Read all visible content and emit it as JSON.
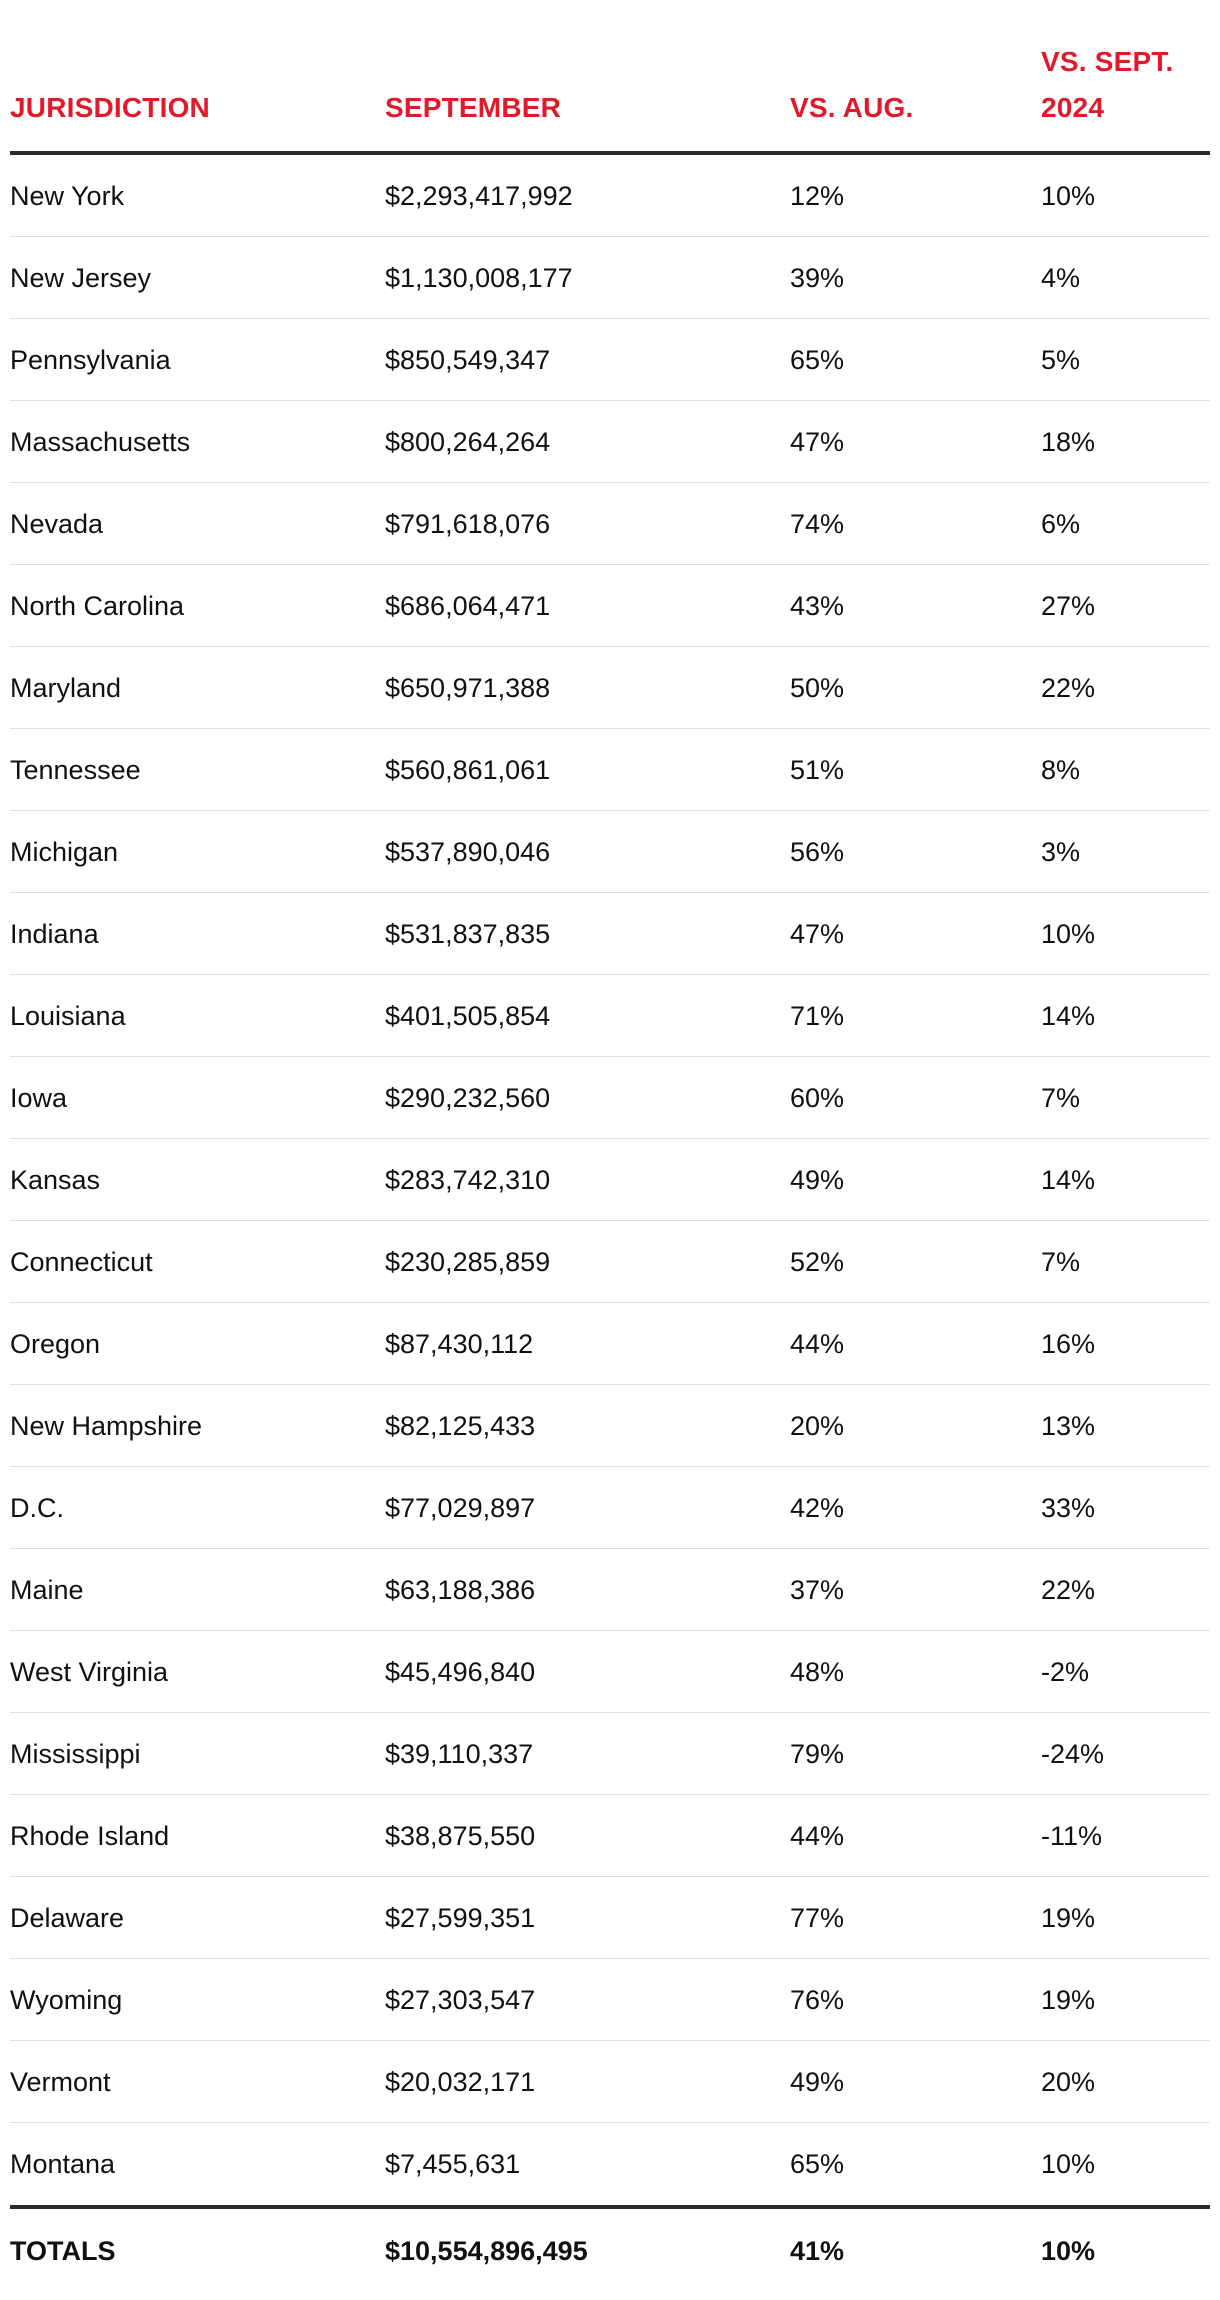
{
  "table": {
    "columns": [
      "JURISDICTION",
      "SEPTEMBER",
      "VS. AUG.",
      "VS. SEPT.\n2024"
    ],
    "rows": [
      [
        "New York",
        "$2,293,417,992",
        "12%",
        "10%"
      ],
      [
        "New Jersey",
        "$1,130,008,177",
        "39%",
        "4%"
      ],
      [
        "Pennsylvania",
        "$850,549,347",
        "65%",
        "5%"
      ],
      [
        "Massachusetts",
        "$800,264,264",
        "47%",
        "18%"
      ],
      [
        "Nevada",
        "$791,618,076",
        "74%",
        "6%"
      ],
      [
        "North Carolina",
        "$686,064,471",
        "43%",
        "27%"
      ],
      [
        "Maryland",
        "$650,971,388",
        "50%",
        "22%"
      ],
      [
        "Tennessee",
        "$560,861,061",
        "51%",
        "8%"
      ],
      [
        "Michigan",
        "$537,890,046",
        "56%",
        "3%"
      ],
      [
        "Indiana",
        "$531,837,835",
        "47%",
        "10%"
      ],
      [
        "Louisiana",
        "$401,505,854",
        "71%",
        "14%"
      ],
      [
        "Iowa",
        "$290,232,560",
        "60%",
        "7%"
      ],
      [
        "Kansas",
        "$283,742,310",
        "49%",
        "14%"
      ],
      [
        "Connecticut",
        "$230,285,859",
        "52%",
        "7%"
      ],
      [
        "Oregon",
        "$87,430,112",
        "44%",
        "16%"
      ],
      [
        "New Hampshire",
        "$82,125,433",
        "20%",
        "13%"
      ],
      [
        "D.C.",
        "$77,029,897",
        "42%",
        "33%"
      ],
      [
        "Maine",
        "$63,188,386",
        "37%",
        "22%"
      ],
      [
        "West Virginia",
        "$45,496,840",
        "48%",
        "-2%"
      ],
      [
        "Mississippi",
        "$39,110,337",
        "79%",
        "-24%"
      ],
      [
        "Rhode Island",
        "$38,875,550",
        "44%",
        "-11%"
      ],
      [
        "Delaware",
        "$27,599,351",
        "77%",
        "19%"
      ],
      [
        "Wyoming",
        "$27,303,547",
        "76%",
        "19%"
      ],
      [
        "Vermont",
        "$20,032,171",
        "49%",
        "20%"
      ],
      [
        "Montana",
        "$7,455,631",
        "65%",
        "10%"
      ]
    ],
    "totals": [
      "TOTALS",
      "$10,554,896,495",
      "41%",
      "10%"
    ]
  },
  "colors": {
    "header_text": "#e01a2b",
    "body_text": "#111111",
    "rule": "#2a2a2a",
    "row_divider": "#e2e2e2"
  }
}
